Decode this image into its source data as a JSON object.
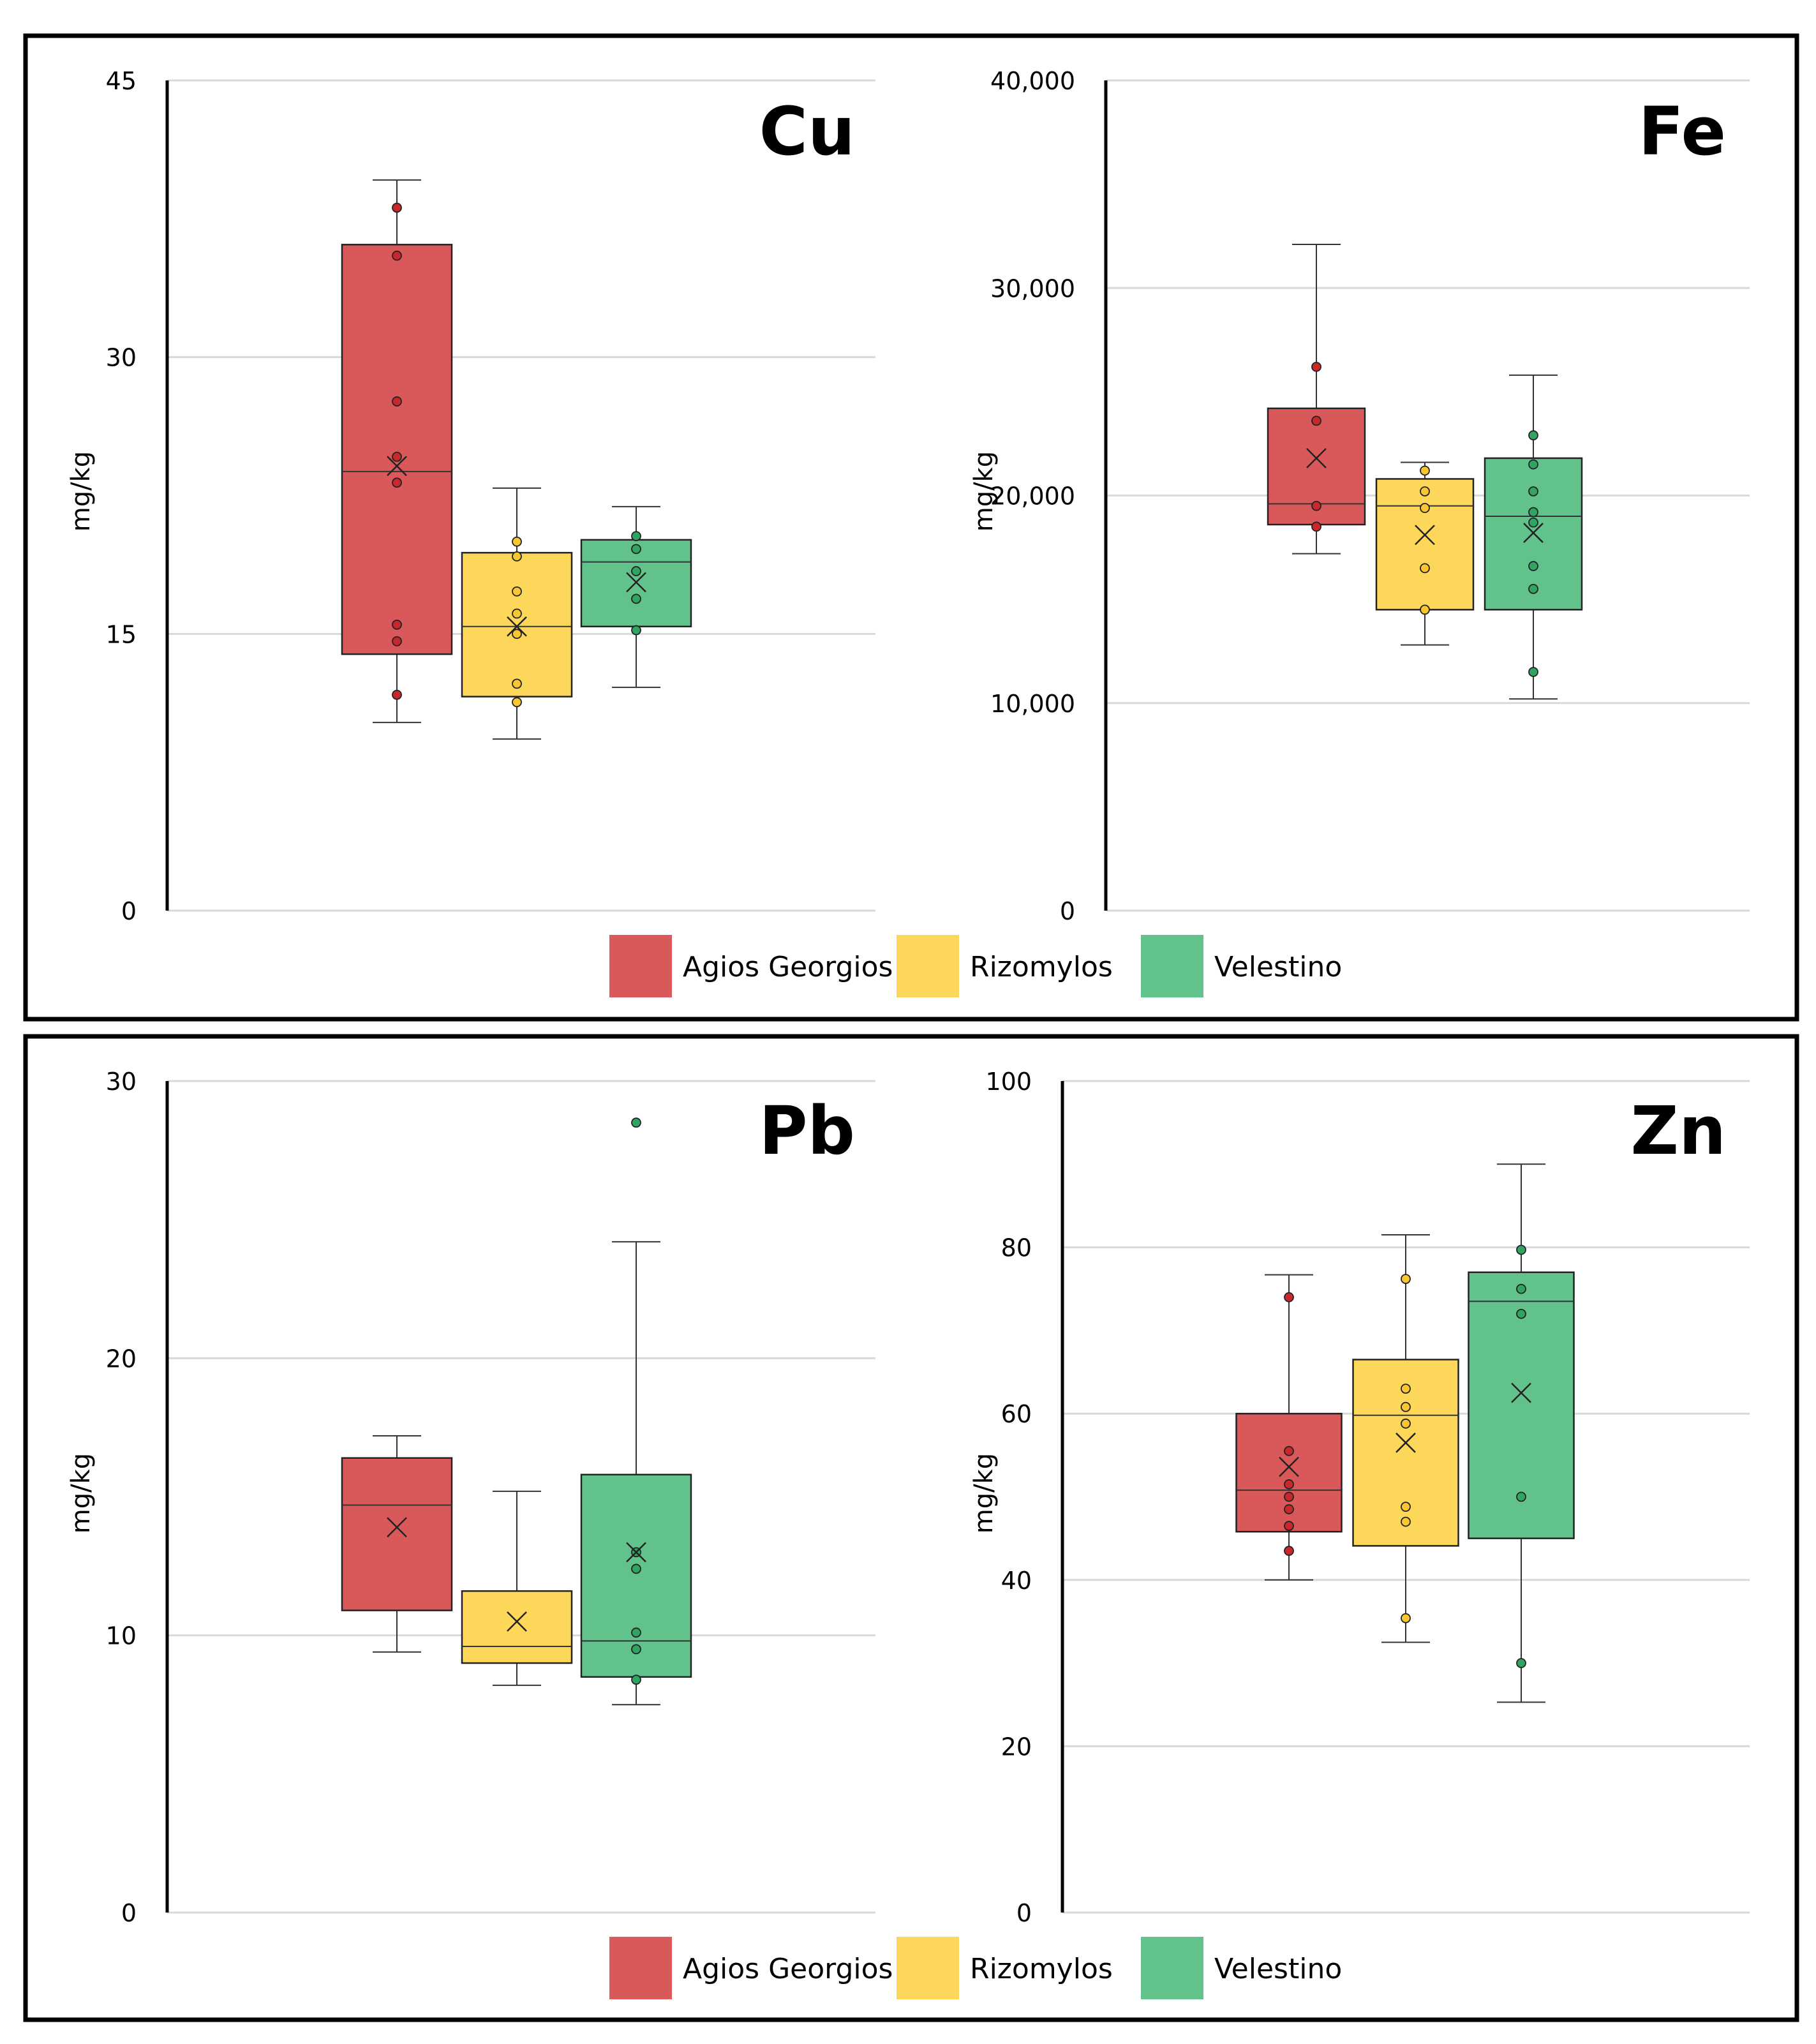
{
  "colors": {
    "Agios Georgios": "#d9585a",
    "Rizomylos": "#fdd75a",
    "Velestino": "#62c28c",
    "Agios Georgios_dot": "#c8282c",
    "Rizomylos_dot": "#f7c631",
    "Velestino_dot": "#2fa463",
    "grid": "#d9d9d9",
    "frame": "#000000"
  },
  "legend": {
    "entries": [
      "Agios Georgios",
      "Rizomylos",
      "Velestino"
    ]
  },
  "chart_data": [
    {
      "type": "box",
      "title": "Cu",
      "ylabel": "mg/kg",
      "ylim": [
        0,
        45
      ],
      "yticks": [
        0,
        15,
        30,
        45
      ],
      "ytick_labels": [
        "0",
        "15",
        "30",
        "45"
      ],
      "grid": true,
      "series": [
        {
          "name": "Agios Georgios",
          "min": 10.2,
          "q1": 13.9,
          "median": 23.8,
          "q3": 36.1,
          "max": 39.6,
          "mean": 24.1,
          "points": [
            38.1,
            35.5,
            27.6,
            24.6,
            23.2,
            15.5,
            14.6,
            11.7
          ]
        },
        {
          "name": "Rizomylos",
          "min": 9.3,
          "q1": 11.6,
          "median": 15.4,
          "q3": 19.4,
          "max": 22.9,
          "mean": 15.4,
          "points": [
            20.0,
            19.2,
            17.3,
            16.1,
            15.0,
            12.3,
            11.3
          ]
        },
        {
          "name": "Velestino",
          "min": 12.1,
          "q1": 15.4,
          "median": 18.9,
          "q3": 20.1,
          "max": 21.9,
          "mean": 17.8,
          "points": [
            20.3,
            19.6,
            18.4,
            16.9,
            15.2
          ]
        }
      ]
    },
    {
      "type": "box",
      "title": "Fe",
      "ylabel": "mg/kg",
      "ylim": [
        0,
        40000
      ],
      "yticks": [
        0,
        10000,
        20000,
        30000,
        40000
      ],
      "ytick_labels": [
        "0",
        "10,000",
        "20,000",
        "30,000",
        "40,000"
      ],
      "grid": true,
      "series": [
        {
          "name": "Agios Georgios",
          "min": 17200,
          "q1": 18600,
          "median": 19600,
          "q3": 24200,
          "max": 32100,
          "mean": 21800,
          "points": [
            26200,
            23600,
            19500,
            18500
          ]
        },
        {
          "name": "Rizomylos",
          "min": 12800,
          "q1": 14500,
          "median": 19500,
          "q3": 20800,
          "max": 21600,
          "mean": 18100,
          "points": [
            21200,
            20200,
            19400,
            16500,
            14500
          ]
        },
        {
          "name": "Velestino",
          "min": 10200,
          "q1": 14500,
          "median": 19000,
          "q3": 21800,
          "max": 25800,
          "mean": 18200,
          "points": [
            22900,
            21500,
            20200,
            19200,
            18700,
            16600,
            15500,
            11500
          ]
        }
      ]
    },
    {
      "type": "box",
      "title": "Pb",
      "ylabel": "mg/kg",
      "ylim": [
        0,
        30
      ],
      "yticks": [
        0,
        10,
        20,
        30
      ],
      "ytick_labels": [
        "0",
        "10",
        "20",
        "30"
      ],
      "grid": true,
      "series": [
        {
          "name": "Agios Georgios",
          "min": 9.4,
          "q1": 10.9,
          "median": 14.7,
          "q3": 16.4,
          "max": 17.2,
          "mean": 13.9,
          "points": []
        },
        {
          "name": "Rizomylos",
          "min": 8.2,
          "q1": 9.0,
          "median": 9.6,
          "q3": 11.6,
          "max": 15.2,
          "mean": 10.5,
          "points": []
        },
        {
          "name": "Velestino",
          "min": 7.5,
          "q1": 8.5,
          "median": 9.8,
          "q3": 15.8,
          "max": 24.2,
          "mean": 13.0,
          "points": [
            28.5,
            13.0,
            12.4,
            10.1,
            9.5,
            8.4
          ]
        }
      ]
    },
    {
      "type": "box",
      "title": "Zn",
      "ylabel": "mg/kg",
      "ylim": [
        0,
        100
      ],
      "yticks": [
        0,
        20,
        40,
        60,
        80,
        100
      ],
      "ytick_labels": [
        "0",
        "20",
        "40",
        "60",
        "80",
        "100"
      ],
      "grid": true,
      "series": [
        {
          "name": "Agios Georgios",
          "min": 40.0,
          "q1": 45.8,
          "median": 50.8,
          "q3": 60.0,
          "max": 76.7,
          "mean": 53.6,
          "points": [
            74.0,
            55.5,
            51.5,
            50.0,
            48.5,
            46.5,
            43.5
          ]
        },
        {
          "name": "Rizomylos",
          "min": 32.5,
          "q1": 44.1,
          "median": 59.8,
          "q3": 66.5,
          "max": 81.5,
          "mean": 56.5,
          "points": [
            76.2,
            63.0,
            60.8,
            58.8,
            48.8,
            47.0,
            35.4
          ]
        },
        {
          "name": "Velestino",
          "min": 25.3,
          "q1": 45.0,
          "median": 73.5,
          "q3": 77.0,
          "max": 90.0,
          "mean": 62.5,
          "points": [
            79.7,
            75.0,
            72.0,
            50.0,
            30.0
          ]
        }
      ]
    }
  ]
}
